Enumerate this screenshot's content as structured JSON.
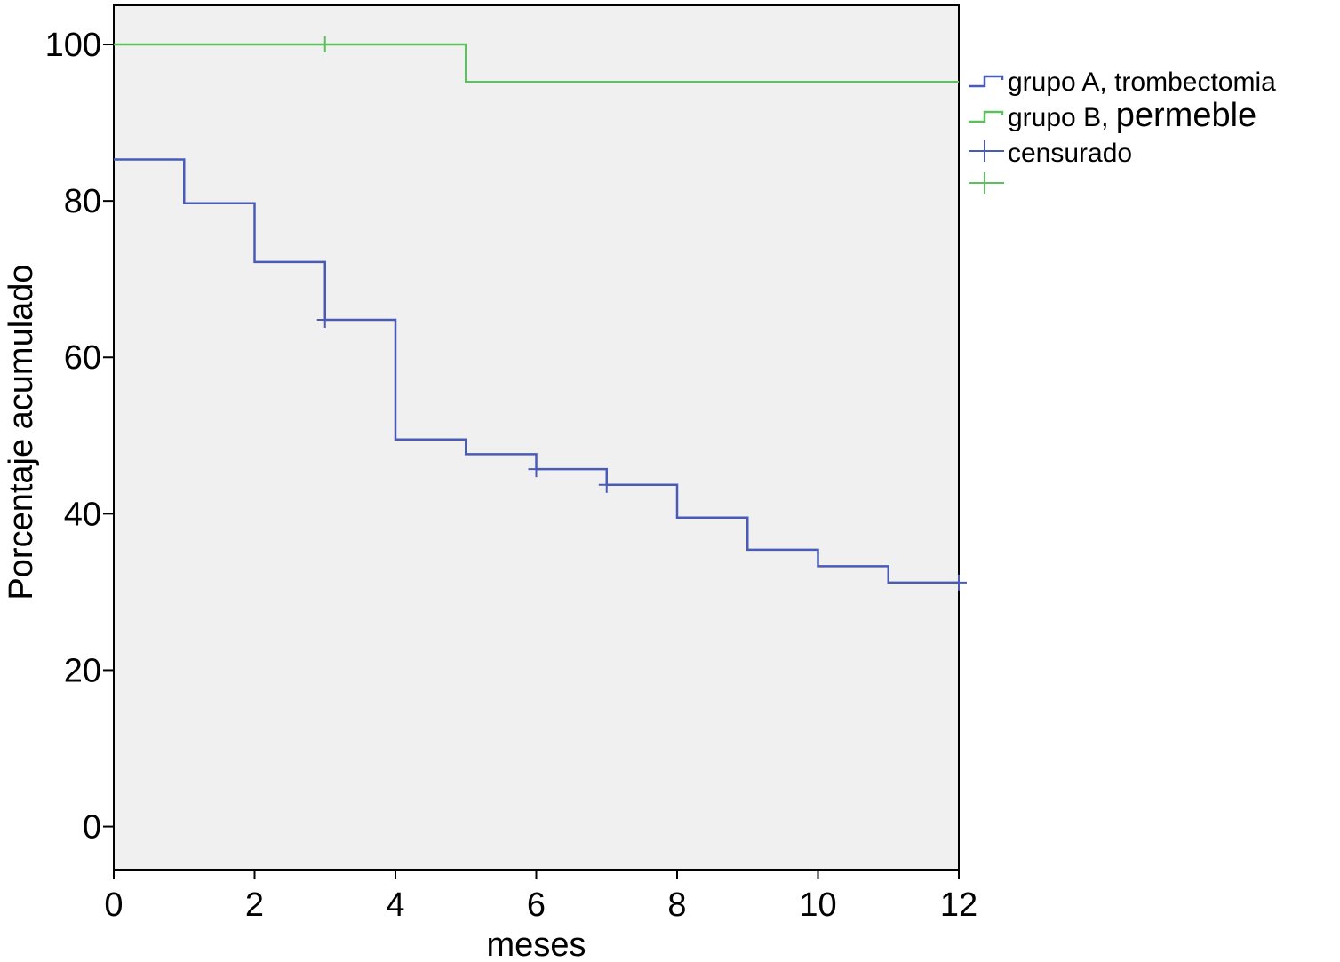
{
  "chart_data": {
    "type": "line",
    "step": true,
    "xlabel": "meses",
    "ylabel": "Porcentaje acumulado",
    "xlim": [
      0,
      12
    ],
    "ylim": [
      -5.5,
      105
    ],
    "xticks": [
      0,
      2,
      4,
      6,
      8,
      10,
      12
    ],
    "yticks": [
      0,
      20,
      40,
      60,
      80,
      100
    ],
    "grid": false,
    "legend_position": "right",
    "plot_background": "#f0f0f0",
    "series": [
      {
        "name": "grupo A, trombectomia",
        "color": "#4a5bb5",
        "x": [
          0,
          1,
          2,
          3,
          4,
          5,
          6,
          7,
          8,
          9,
          10,
          11,
          12
        ],
        "y": [
          85.3,
          79.7,
          72.2,
          64.8,
          49.5,
          47.6,
          45.7,
          43.7,
          39.5,
          35.4,
          33.3,
          31.2,
          31.2
        ],
        "censored": [
          {
            "x": 3,
            "y": 64.8
          },
          {
            "x": 6,
            "y": 45.7
          },
          {
            "x": 7,
            "y": 43.7
          },
          {
            "x": 12,
            "y": 31.2
          }
        ]
      },
      {
        "name": "grupo B, permeble",
        "color": "#5cc05c",
        "x": [
          0,
          5,
          12
        ],
        "y": [
          100,
          95.2,
          95.2
        ],
        "censored": [
          {
            "x": 3,
            "y": 100
          }
        ]
      }
    ],
    "legend": [
      {
        "label_main": "grupo A, trombectomia",
        "label_big": "",
        "symbol": "step",
        "color": "#4a5bb5"
      },
      {
        "label_main": "grupo B, ",
        "label_big": "permeble",
        "symbol": "step",
        "color": "#5cc05c"
      },
      {
        "label_main": "censurado",
        "label_big": "",
        "symbol": "cross",
        "color": "#4a5bb5"
      },
      {
        "label_main": "",
        "label_big": "",
        "symbol": "cross",
        "color": "#5cc05c"
      }
    ]
  }
}
